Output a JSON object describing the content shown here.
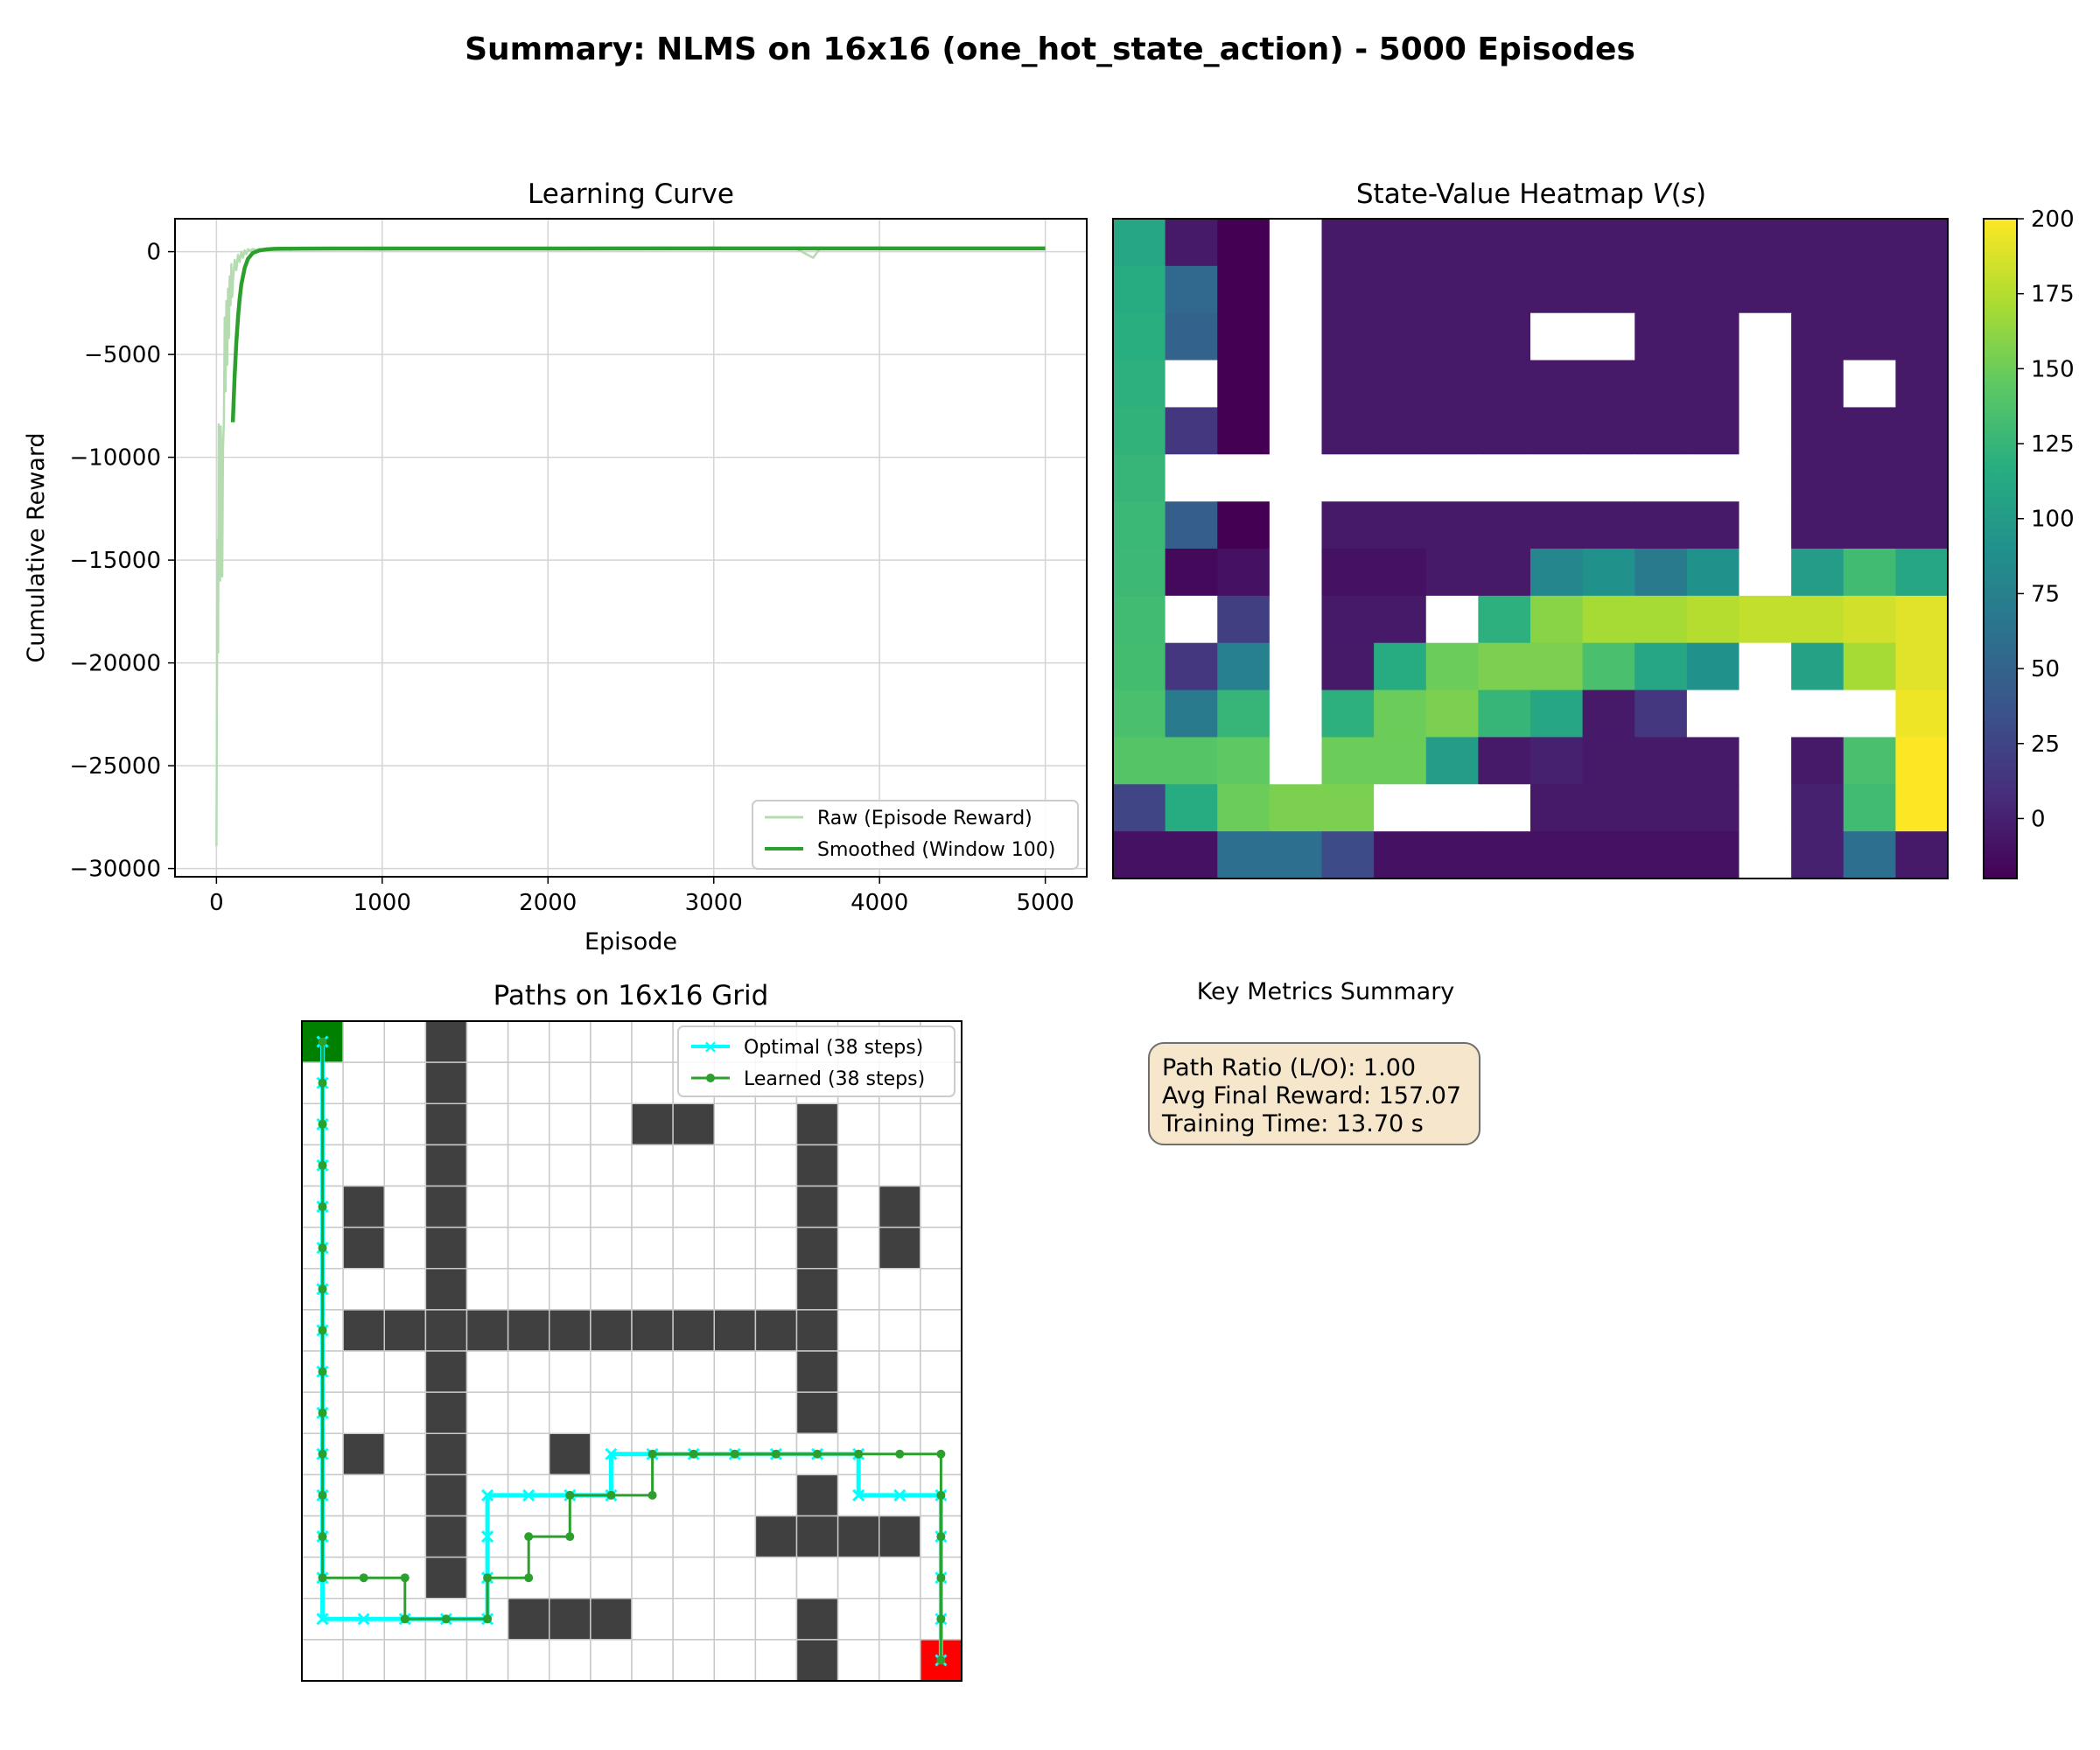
{
  "figure_title": "Summary: NLMS on 16x16 (one_hot_state_action) - 5000 Episodes",
  "colors": {
    "raw_line": "#b5dcb1",
    "smoothed_line": "#2ca02c",
    "optimal_path": "#00ffff",
    "learned_path": "#2ca02c",
    "wall": "#404040",
    "start": "#008000",
    "goal": "#ff0000",
    "box_bg": "#f5e6cc"
  },
  "chart_data": [
    {
      "type": "line",
      "title": "Learning Curve",
      "xlabel": "Episode",
      "ylabel": "Cumulative Reward",
      "xlim": [
        -250,
        5250
      ],
      "ylim": [
        -30400,
        1600
      ],
      "xticks": [
        0,
        1000,
        2000,
        3000,
        4000,
        5000
      ],
      "xtick_labels": [
        "0",
        "1000",
        "2000",
        "3000",
        "4000",
        "5000"
      ],
      "yticks": [
        0,
        -5000,
        -10000,
        -15000,
        -20000,
        -25000,
        -30000
      ],
      "ytick_labels": [
        "0",
        "−5000",
        "−10000",
        "−15000",
        "−20000",
        "−25000",
        "−30000"
      ],
      "grid": true,
      "legend_position": "lower-right",
      "series": [
        {
          "name": "Raw (Episode Reward)",
          "x": [
            0,
            3,
            6,
            10,
            14,
            18,
            22,
            26,
            30,
            35,
            40,
            45,
            50,
            55,
            60,
            65,
            70,
            75,
            80,
            85,
            90,
            95,
            100,
            110,
            120,
            130,
            140,
            150,
            160,
            170,
            180,
            190,
            200,
            220,
            240,
            260,
            280,
            300,
            330,
            360,
            400,
            450,
            500,
            600,
            800,
            1000,
            1200,
            1500,
            2000,
            2500,
            3000,
            3500,
            3600,
            3640,
            3680,
            3800,
            4000,
            4500,
            5000
          ],
          "y": [
            -28900,
            -22000,
            -14000,
            -19500,
            -8400,
            -12000,
            -16000,
            -8500,
            -9800,
            -15800,
            -9600,
            -8200,
            -3200,
            -6800,
            -2400,
            -5500,
            -1800,
            -4200,
            -1200,
            -2600,
            -600,
            -2200,
            -1400,
            -400,
            -900,
            -150,
            -500,
            0,
            -300,
            60,
            -120,
            120,
            40,
            130,
            80,
            140,
            100,
            150,
            120,
            150,
            140,
            90,
            150,
            120,
            150,
            100,
            150,
            130,
            150,
            120,
            150,
            130,
            -300,
            150,
            120,
            150,
            130,
            150,
            150
          ]
        },
        {
          "name": "Smoothed (Window 100)",
          "x": [
            99,
            110,
            120,
            130,
            140,
            150,
            170,
            190,
            220,
            260,
            300,
            350,
            400,
            500,
            700,
            1000,
            2000,
            3000,
            4000,
            5000
          ],
          "y": [
            -8300,
            -6000,
            -4400,
            -3200,
            -2300,
            -1600,
            -800,
            -350,
            -60,
            60,
            110,
            135,
            145,
            150,
            152,
            153,
            155,
            156,
            157,
            157
          ]
        }
      ]
    },
    {
      "type": "heatmap",
      "title": "State-Value Heatmap V(s)",
      "colorbar_ticks": [
        0,
        25,
        50,
        75,
        100,
        125,
        150,
        175,
        200
      ],
      "colorbar_tick_labels": [
        "0",
        "25",
        "50",
        "75",
        "100",
        "125",
        "150",
        "175",
        "200"
      ],
      "vmin": -20,
      "vmax": 200,
      "values": [
        [
          110,
          -5,
          -20,
          null,
          -5,
          -5,
          -5,
          -5,
          -5,
          -5,
          -5,
          -5,
          -5,
          -5,
          -5,
          -5
        ],
        [
          115,
          55,
          -20,
          null,
          -5,
          -5,
          -5,
          -5,
          -5,
          -5,
          -5,
          -5,
          -5,
          -5,
          -5,
          -5
        ],
        [
          118,
          50,
          -20,
          null,
          -5,
          -5,
          -5,
          -5,
          null,
          null,
          -5,
          -5,
          null,
          -5,
          -5,
          -5
        ],
        [
          120,
          null,
          -20,
          null,
          -5,
          -5,
          -5,
          -5,
          -5,
          -5,
          -5,
          -5,
          null,
          -5,
          null,
          -5
        ],
        [
          122,
          15,
          -20,
          null,
          -5,
          -5,
          -5,
          -5,
          -5,
          -5,
          -5,
          -5,
          null,
          -5,
          -5,
          -5
        ],
        [
          125,
          null,
          null,
          null,
          null,
          null,
          null,
          null,
          null,
          null,
          null,
          null,
          null,
          -5,
          -5,
          -5
        ],
        [
          127,
          45,
          -20,
          null,
          -5,
          -5,
          -5,
          -5,
          -5,
          -5,
          -5,
          -5,
          null,
          -5,
          -5,
          -5
        ],
        [
          128,
          -15,
          -10,
          null,
          -10,
          -10,
          -5,
          -5,
          80,
          90,
          70,
          90,
          null,
          100,
          130,
          110
        ],
        [
          130,
          null,
          20,
          null,
          -5,
          -5,
          null,
          120,
          160,
          170,
          170,
          175,
          180,
          180,
          185,
          190
        ],
        [
          132,
          15,
          75,
          null,
          -5,
          115,
          150,
          155,
          155,
          135,
          110,
          90,
          null,
          105,
          170,
          190
        ],
        [
          135,
          70,
          125,
          null,
          120,
          150,
          155,
          125,
          110,
          -5,
          15,
          null,
          null,
          null,
          null,
          195
        ],
        [
          140,
          140,
          145,
          null,
          150,
          150,
          100,
          -5,
          0,
          -5,
          -5,
          -5,
          null,
          -5,
          135,
          200
        ],
        [
          25,
          115,
          150,
          155,
          155,
          null,
          null,
          null,
          -5,
          -5,
          -5,
          -5,
          null,
          0,
          130,
          200
        ],
        [
          -10,
          -10,
          60,
          60,
          30,
          -10,
          -10,
          -10,
          -10,
          -10,
          -10,
          -10,
          null,
          0,
          60,
          -5
        ]
      ]
    },
    {
      "type": "grid-paths",
      "title": "Paths on 16x16 Grid",
      "grid_size": 16,
      "walls": [
        [
          0,
          3
        ],
        [
          1,
          3
        ],
        [
          2,
          3
        ],
        [
          2,
          8
        ],
        [
          2,
          9
        ],
        [
          2,
          12
        ],
        [
          3,
          3
        ],
        [
          3,
          12
        ],
        [
          4,
          1
        ],
        [
          4,
          3
        ],
        [
          4,
          12
        ],
        [
          4,
          14
        ],
        [
          5,
          1
        ],
        [
          5,
          3
        ],
        [
          5,
          12
        ],
        [
          5,
          14
        ],
        [
          6,
          3
        ],
        [
          6,
          12
        ],
        [
          7,
          1
        ],
        [
          7,
          2
        ],
        [
          7,
          3
        ],
        [
          7,
          4
        ],
        [
          7,
          5
        ],
        [
          7,
          6
        ],
        [
          7,
          7
        ],
        [
          7,
          8
        ],
        [
          7,
          9
        ],
        [
          7,
          10
        ],
        [
          7,
          11
        ],
        [
          7,
          12
        ],
        [
          8,
          3
        ],
        [
          8,
          12
        ],
        [
          9,
          3
        ],
        [
          9,
          12
        ],
        [
          10,
          1
        ],
        [
          10,
          3
        ],
        [
          10,
          6
        ],
        [
          11,
          3
        ],
        [
          11,
          12
        ],
        [
          12,
          3
        ],
        [
          12,
          11
        ],
        [
          12,
          12
        ],
        [
          12,
          13
        ],
        [
          12,
          14
        ],
        [
          13,
          3
        ],
        [
          14,
          5
        ],
        [
          14,
          6
        ],
        [
          14,
          7
        ],
        [
          14,
          12
        ],
        [
          15,
          12
        ]
      ],
      "start": [
        0,
        0
      ],
      "goal": [
        15,
        15
      ],
      "series": [
        {
          "name": "Optimal (38 steps)",
          "marker": "x",
          "path": [
            [
              0,
              0
            ],
            [
              1,
              0
            ],
            [
              2,
              0
            ],
            [
              3,
              0
            ],
            [
              4,
              0
            ],
            [
              5,
              0
            ],
            [
              6,
              0
            ],
            [
              7,
              0
            ],
            [
              8,
              0
            ],
            [
              9,
              0
            ],
            [
              10,
              0
            ],
            [
              11,
              0
            ],
            [
              12,
              0
            ],
            [
              13,
              0
            ],
            [
              14,
              0
            ],
            [
              14,
              1
            ],
            [
              14,
              2
            ],
            [
              14,
              3
            ],
            [
              14,
              4
            ],
            [
              13,
              4
            ],
            [
              12,
              4
            ],
            [
              11,
              4
            ],
            [
              11,
              5
            ],
            [
              11,
              6
            ],
            [
              11,
              7
            ],
            [
              10,
              7
            ],
            [
              10,
              8
            ],
            [
              10,
              9
            ],
            [
              10,
              10
            ],
            [
              10,
              11
            ],
            [
              10,
              12
            ],
            [
              10,
              13
            ],
            [
              11,
              13
            ],
            [
              11,
              14
            ],
            [
              11,
              15
            ],
            [
              12,
              15
            ],
            [
              13,
              15
            ],
            [
              14,
              15
            ],
            [
              15,
              15
            ]
          ]
        },
        {
          "name": "Learned (38 steps)",
          "marker": "dot",
          "path": [
            [
              0,
              0
            ],
            [
              1,
              0
            ],
            [
              2,
              0
            ],
            [
              3,
              0
            ],
            [
              4,
              0
            ],
            [
              5,
              0
            ],
            [
              6,
              0
            ],
            [
              7,
              0
            ],
            [
              8,
              0
            ],
            [
              9,
              0
            ],
            [
              10,
              0
            ],
            [
              11,
              0
            ],
            [
              12,
              0
            ],
            [
              13,
              0
            ],
            [
              13,
              1
            ],
            [
              13,
              2
            ],
            [
              14,
              2
            ],
            [
              14,
              3
            ],
            [
              14,
              4
            ],
            [
              13,
              4
            ],
            [
              13,
              5
            ],
            [
              12,
              5
            ],
            [
              12,
              6
            ],
            [
              11,
              6
            ],
            [
              11,
              7
            ],
            [
              11,
              8
            ],
            [
              10,
              8
            ],
            [
              10,
              9
            ],
            [
              10,
              10
            ],
            [
              10,
              11
            ],
            [
              10,
              12
            ],
            [
              10,
              13
            ],
            [
              10,
              14
            ],
            [
              10,
              15
            ],
            [
              11,
              15
            ],
            [
              12,
              15
            ],
            [
              13,
              15
            ],
            [
              14,
              15
            ],
            [
              15,
              15
            ]
          ]
        }
      ]
    }
  ],
  "metrics": {
    "title": "Key Metrics Summary",
    "path_ratio": "Path Ratio (L/O): 1.00",
    "avg_final_reward": "Avg Final Reward: 157.07",
    "training_time": "Training Time: 13.70 s"
  }
}
